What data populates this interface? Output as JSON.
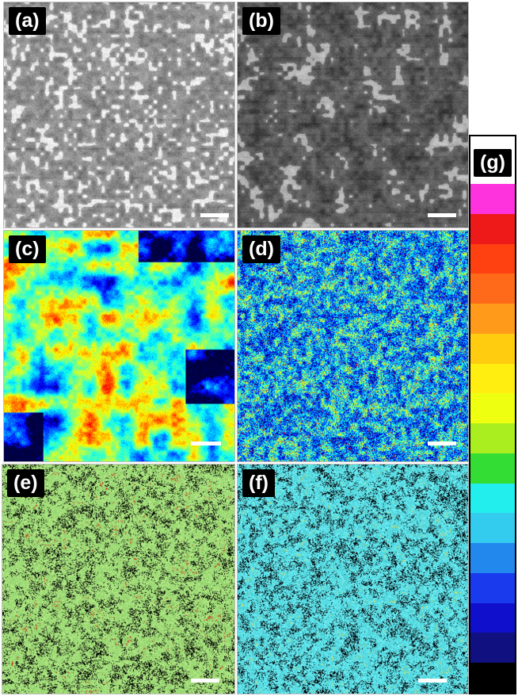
{
  "panels": [
    {
      "id": "a",
      "label": "(a)",
      "style": "sem-light"
    },
    {
      "id": "b",
      "label": "(b)",
      "style": "sem-dark"
    },
    {
      "id": "c",
      "label": "(c)",
      "style": "jet-blobs"
    },
    {
      "id": "d",
      "label": "(d)",
      "style": "jet-noise"
    },
    {
      "id": "e",
      "label": "(e)",
      "style": "green-red"
    },
    {
      "id": "f",
      "label": "(f)",
      "style": "cyan-noise"
    }
  ],
  "colorbar": {
    "label": "(g)",
    "colors": [
      "#ff33dd",
      "#ee1a1a",
      "#ff4010",
      "#ff6a1a",
      "#ff9a1a",
      "#ffcc10",
      "#ffee10",
      "#eeff10",
      "#aaee20",
      "#33dd33",
      "#22eeee",
      "#33ccee",
      "#2288ee",
      "#1a3aee",
      "#1010cc",
      "#101080",
      "#000000"
    ]
  }
}
